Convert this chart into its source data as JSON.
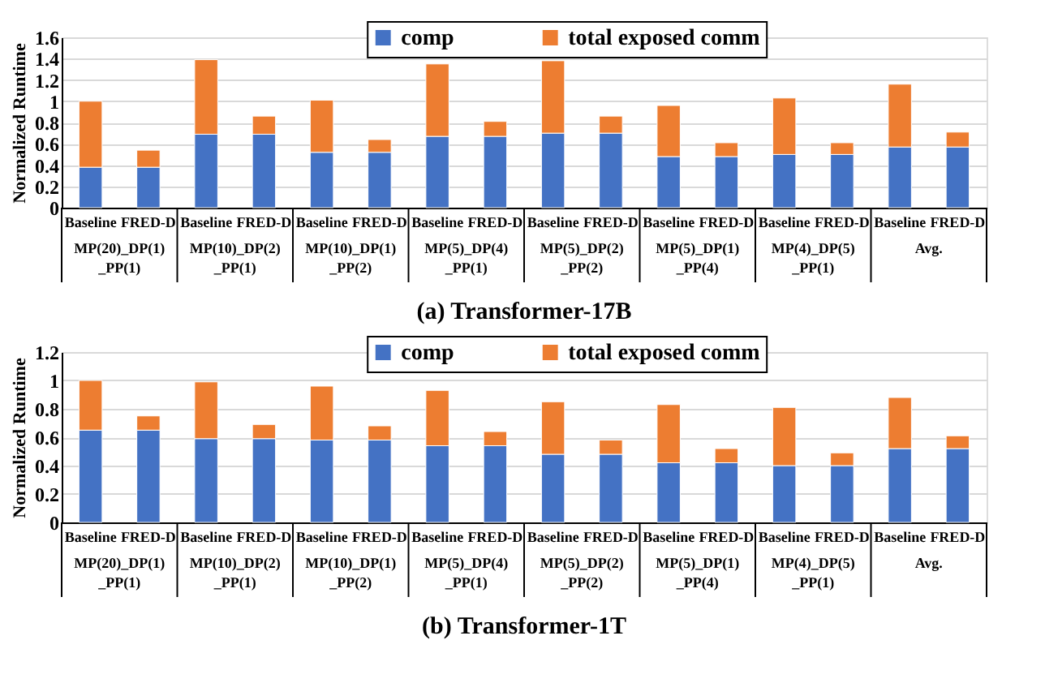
{
  "chart_data": [
    {
      "type": "bar",
      "title": "(a) Transformer-17B",
      "ylabel": "Normalized Runtime",
      "stacked": true,
      "categories": [
        "Baseline",
        "FRED-D",
        "Baseline",
        "FRED-D",
        "Baseline",
        "FRED-D",
        "Baseline",
        "FRED-D",
        "Baseline",
        "FRED-D",
        "Baseline",
        "FRED-D",
        "Baseline",
        "FRED-D",
        "Baseline",
        "FRED-D"
      ],
      "annotations": [
        "MP(20)_DP(1)_PP(1)",
        "MP(10)_DP(2)_PP(1)",
        "MP(10)_DP(1)_PP(2)",
        "MP(5)_DP(4)_PP(1)",
        "MP(5)_DP(2)_PP(2)",
        "MP(5)_DP(1)_PP(4)",
        "MP(4)_DP(5)_PP(1)",
        "Avg."
      ],
      "series": [
        {
          "name": "comp",
          "color": "#4472c4",
          "values": [
            0.38,
            0.38,
            0.69,
            0.69,
            0.52,
            0.52,
            0.67,
            0.67,
            0.7,
            0.7,
            0.48,
            0.48,
            0.5,
            0.5,
            0.57,
            0.57
          ]
        },
        {
          "name": "total exposed comm",
          "color": "#ed7d31",
          "values": [
            0.62,
            0.16,
            0.7,
            0.17,
            0.49,
            0.12,
            0.68,
            0.14,
            0.68,
            0.16,
            0.48,
            0.13,
            0.53,
            0.11,
            0.59,
            0.14
          ]
        }
      ],
      "ylim": [
        0,
        1.6
      ],
      "yticks": [
        0,
        0.2,
        0.4,
        0.6,
        0.8,
        1,
        1.2,
        1.4,
        1.6
      ],
      "grid": "y",
      "legend": "top"
    },
    {
      "type": "bar",
      "title": "(b) Transformer-1T",
      "ylabel": "Normalized Runtime",
      "stacked": true,
      "categories": [
        "Baseline",
        "FRED-D",
        "Baseline",
        "FRED-D",
        "Baseline",
        "FRED-D",
        "Baseline",
        "FRED-D",
        "Baseline",
        "FRED-D",
        "Baseline",
        "FRED-D",
        "Baseline",
        "FRED-D",
        "Baseline",
        "FRED-D"
      ],
      "annotations": [
        "MP(20)_DP(1)_PP(1)",
        "MP(10)_DP(2)_PP(1)",
        "MP(10)_DP(1)_PP(2)",
        "MP(5)_DP(4)_PP(1)",
        "MP(5)_DP(2)_PP(2)",
        "MP(5)_DP(1)_PP(4)",
        "MP(4)_DP(5)_PP(1)",
        "Avg."
      ],
      "series": [
        {
          "name": "comp",
          "color": "#4472c4",
          "values": [
            0.65,
            0.65,
            0.59,
            0.59,
            0.58,
            0.58,
            0.54,
            0.54,
            0.48,
            0.48,
            0.42,
            0.42,
            0.4,
            0.4,
            0.52,
            0.52
          ]
        },
        {
          "name": "total exposed comm",
          "color": "#ed7d31",
          "values": [
            0.35,
            0.1,
            0.4,
            0.1,
            0.38,
            0.1,
            0.39,
            0.1,
            0.37,
            0.1,
            0.41,
            0.1,
            0.41,
            0.09,
            0.36,
            0.09
          ]
        }
      ],
      "ylim": [
        0,
        1.2
      ],
      "yticks": [
        0,
        0.2,
        0.4,
        0.6,
        0.8,
        1,
        1.2
      ],
      "grid": "y",
      "legend": "top"
    }
  ]
}
